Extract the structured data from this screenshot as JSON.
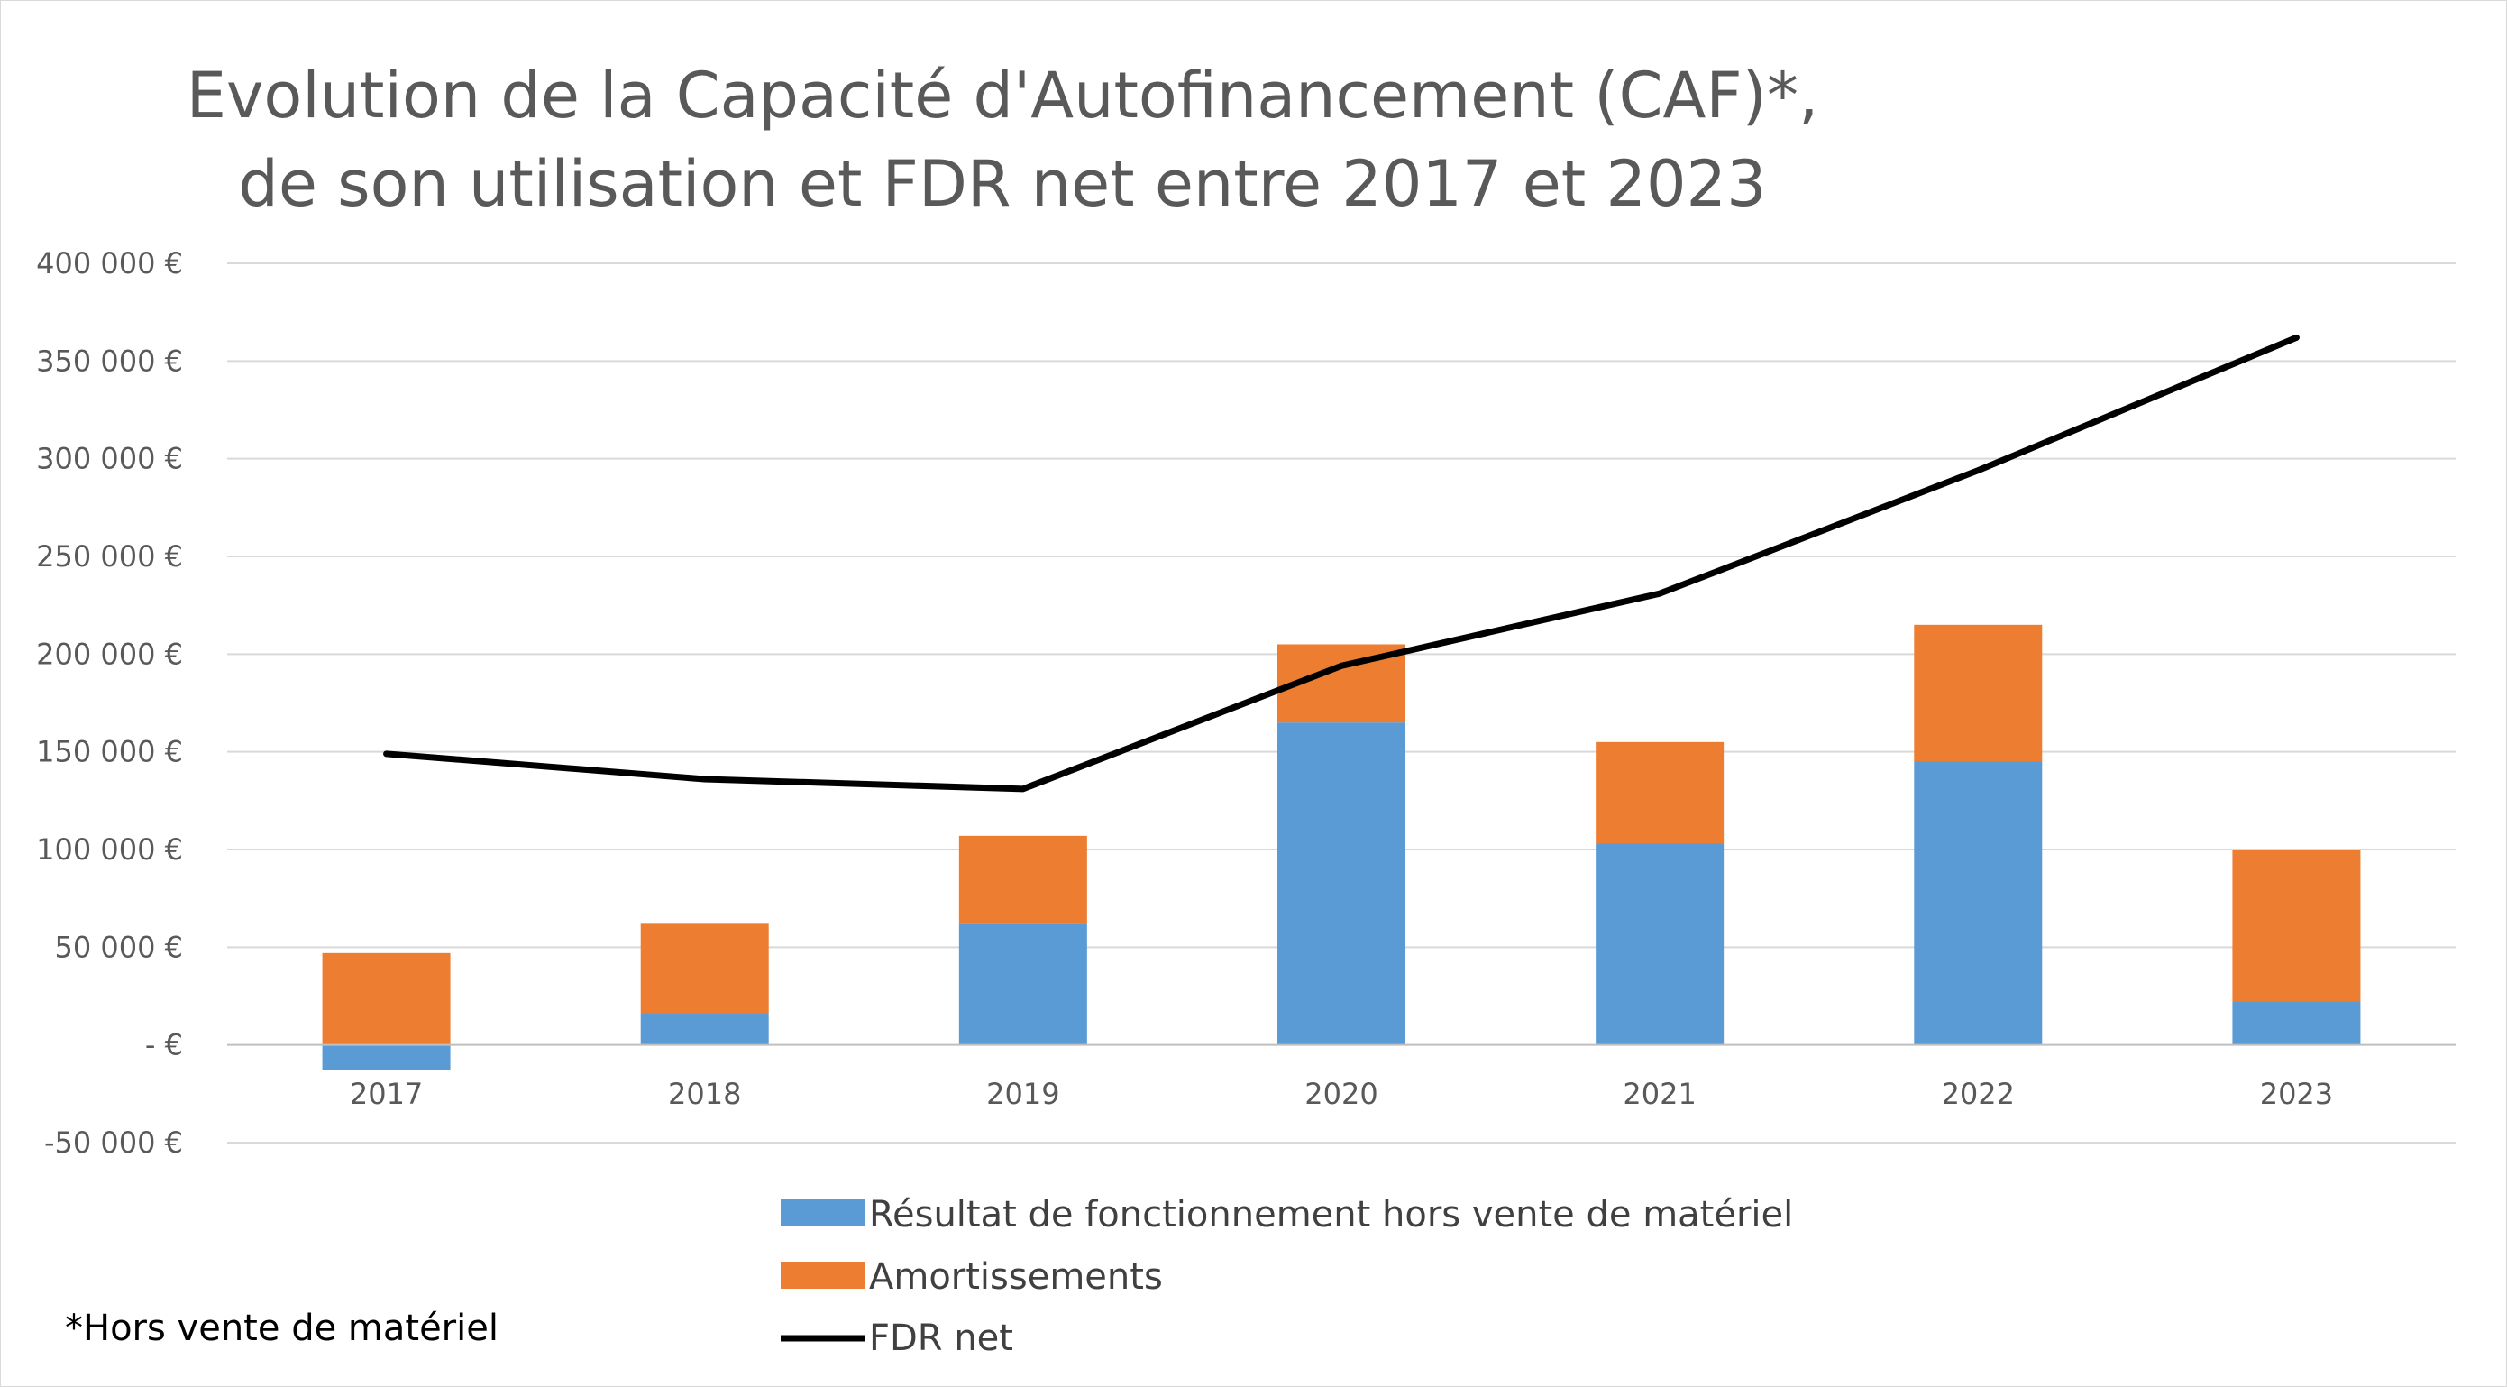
{
  "chart_data": {
    "type": "bar",
    "stacked": true,
    "title_lines": [
      "Evolution de la Capacité d'Autofinancement (CAF)*,",
      "de son utilisation et FDR net entre 2017 et 2023"
    ],
    "categories": [
      "2017",
      "2018",
      "2019",
      "2020",
      "2021",
      "2022",
      "2023"
    ],
    "y_ticks": [
      {
        "value": 400000,
        "label": "400 000 €"
      },
      {
        "value": 350000,
        "label": "350 000 €"
      },
      {
        "value": 300000,
        "label": "300 000 €"
      },
      {
        "value": 250000,
        "label": "250 000 €"
      },
      {
        "value": 200000,
        "label": "200 000 €"
      },
      {
        "value": 150000,
        "label": "150 000 €"
      },
      {
        "value": 100000,
        "label": "100 000 €"
      },
      {
        "value": 50000,
        "label": "50 000 €"
      },
      {
        "value": 0,
        "label": "-  €"
      },
      {
        "value": -50000,
        "label": "-50 000 €"
      }
    ],
    "ylim": [
      -50000,
      400000
    ],
    "grid": true,
    "legend_position": "bottom",
    "series": [
      {
        "name": "Résultat de fonctionnement hors vente de matériel",
        "kind": "bar",
        "color": "#5b9bd5",
        "values": [
          -13000,
          16000,
          62000,
          165000,
          103000,
          145000,
          22000
        ]
      },
      {
        "name": "Amortissements",
        "kind": "bar",
        "color": "#ed7d31",
        "values": [
          47000,
          46000,
          45000,
          40000,
          52000,
          70000,
          78000
        ]
      },
      {
        "name": "FDR net",
        "kind": "line",
        "color": "#000000",
        "values": [
          149000,
          136000,
          131000,
          194000,
          231000,
          294000,
          362000
        ]
      }
    ],
    "footnote": "*Hors vente de matériel"
  }
}
